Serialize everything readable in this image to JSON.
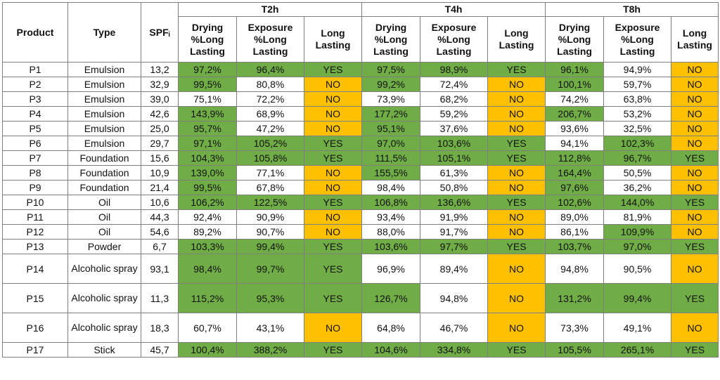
{
  "headers": {
    "product": "Product",
    "type": "Type",
    "spf": "SPFᵢ",
    "groups": [
      "T2h",
      "T4h",
      "T8h"
    ],
    "sub": {
      "drying": "Drying %Long Lasting",
      "exposure": "Exposure %Long Lasting",
      "long": "Long Lasting"
    }
  },
  "colors": {
    "pass": "#70ad47",
    "fail": "#ffc000",
    "neutral": "#ffffff"
  },
  "rows": [
    {
      "product": "P1",
      "type": "Emulsion",
      "spf": "13,2",
      "t2": [
        "97,2%",
        "96,4%",
        "YES"
      ],
      "t4": [
        "97,5%",
        "98,9%",
        "YES"
      ],
      "t8": [
        "96,1%",
        "94,9%",
        "NO"
      ]
    },
    {
      "product": "P2",
      "type": "Emulsion",
      "spf": "32,9",
      "t2": [
        "99,5%",
        "80,8%",
        "NO"
      ],
      "t4": [
        "99,2%",
        "72,4%",
        "NO"
      ],
      "t8": [
        "100,1%",
        "59,7%",
        "NO"
      ]
    },
    {
      "product": "P3",
      "type": "Emulsion",
      "spf": "39,0",
      "t2": [
        "75,1%",
        "72,2%",
        "NO"
      ],
      "t4": [
        "73,9%",
        "68,2%",
        "NO"
      ],
      "t8": [
        "74,2%",
        "63,8%",
        "NO"
      ]
    },
    {
      "product": "P4",
      "type": "Emulsion",
      "spf": "42,6",
      "t2": [
        "143,9%",
        "68,9%",
        "NO"
      ],
      "t4": [
        "177,2%",
        "59,2%",
        "NO"
      ],
      "t8": [
        "206,7%",
        "53,2%",
        "NO"
      ]
    },
    {
      "product": "P5",
      "type": "Emulsion",
      "spf": "25,0",
      "t2": [
        "95,7%",
        "47,2%",
        "NO"
      ],
      "t4": [
        "95,1%",
        "37,6%",
        "NO"
      ],
      "t8": [
        "93,6%",
        "32,5%",
        "NO"
      ]
    },
    {
      "product": "P6",
      "type": "Emulsion",
      "spf": "29,7",
      "t2": [
        "97,1%",
        "105,2%",
        "YES"
      ],
      "t4": [
        "97,0%",
        "103,6%",
        "YES"
      ],
      "t8": [
        "94,1%",
        "102,3%",
        "NO"
      ]
    },
    {
      "product": "P7",
      "type": "Foundation",
      "spf": "15,6",
      "t2": [
        "104,3%",
        "105,8%",
        "YES"
      ],
      "t4": [
        "111,5%",
        "105,1%",
        "YES"
      ],
      "t8": [
        "112,8%",
        "96,7%",
        "YES"
      ]
    },
    {
      "product": "P8",
      "type": "Foundation",
      "spf": "10,9",
      "t2": [
        "139,0%",
        "77,1%",
        "NO"
      ],
      "t4": [
        "155,5%",
        "61,3%",
        "NO"
      ],
      "t8": [
        "164,4%",
        "50,5%",
        "NO"
      ]
    },
    {
      "product": "P9",
      "type": "Foundation",
      "spf": "21,4",
      "t2": [
        "99,5%",
        "67,8%",
        "NO"
      ],
      "t4": [
        "98,4%",
        "50,8%",
        "NO"
      ],
      "t8": [
        "97,6%",
        "36,2%",
        "NO"
      ]
    },
    {
      "product": "P10",
      "type": "Oil",
      "spf": "10,6",
      "t2": [
        "106,2%",
        "122,5%",
        "YES"
      ],
      "t4": [
        "106,8%",
        "136,6%",
        "YES"
      ],
      "t8": [
        "102,6%",
        "144,0%",
        "YES"
      ]
    },
    {
      "product": "P11",
      "type": "Oil",
      "spf": "44,3",
      "t2": [
        "92,4%",
        "90,9%",
        "NO"
      ],
      "t4": [
        "93,4%",
        "91,9%",
        "NO"
      ],
      "t8": [
        "89,0%",
        "81,9%",
        "NO"
      ]
    },
    {
      "product": "P12",
      "type": "Oil",
      "spf": "54,6",
      "t2": [
        "89,2%",
        "90,7%",
        "NO"
      ],
      "t4": [
        "88,0%",
        "91,7%",
        "NO"
      ],
      "t8": [
        "86,1%",
        "109,9%",
        "NO"
      ]
    },
    {
      "product": "P13",
      "type": "Powder",
      "spf": "6,7",
      "t2": [
        "103,3%",
        "99,4%",
        "YES"
      ],
      "t4": [
        "103,6%",
        "97,7%",
        "YES"
      ],
      "t8": [
        "103,7%",
        "97,0%",
        "YES"
      ]
    },
    {
      "product": "P14",
      "type": "Alcoholic spray",
      "spf": "93,1",
      "t2": [
        "98,4%",
        "99,7%",
        "YES"
      ],
      "t4": [
        "96,9%",
        "89,4%",
        "NO"
      ],
      "t8": [
        "94,8%",
        "90,5%",
        "NO"
      ]
    },
    {
      "product": "P15",
      "type": "Alcoholic spray",
      "spf": "11,3",
      "t2": [
        "115,2%",
        "95,3%",
        "YES"
      ],
      "t4": [
        "126,7%",
        "94,8%",
        "NO"
      ],
      "t8": [
        "131,2%",
        "99,4%",
        "YES"
      ]
    },
    {
      "product": "P16",
      "type": "Alcoholic spray",
      "spf": "18,3",
      "t2": [
        "60,7%",
        "43,1%",
        "NO"
      ],
      "t4": [
        "64,8%",
        "46,7%",
        "NO"
      ],
      "t8": [
        "73,3%",
        "49,1%",
        "NO"
      ]
    },
    {
      "product": "P17",
      "type": "Stick",
      "spf": "45,7",
      "t2": [
        "100,4%",
        "388,2%",
        "YES"
      ],
      "t4": [
        "104,6%",
        "334,8%",
        "YES"
      ],
      "t8": [
        "105,5%",
        "265,1%",
        "YES"
      ]
    }
  ]
}
